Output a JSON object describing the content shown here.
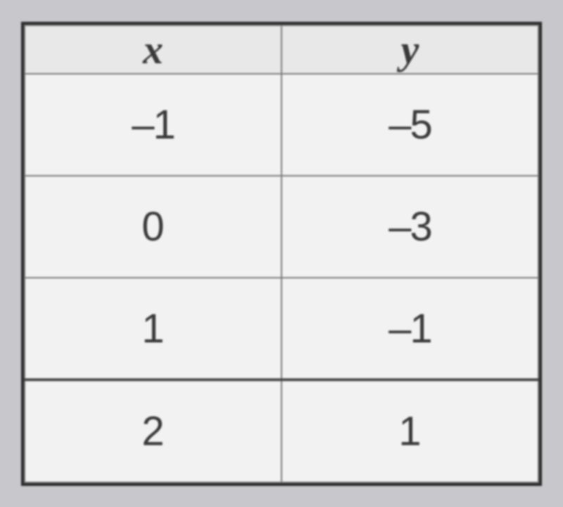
{
  "table": {
    "type": "table",
    "columns": [
      "x",
      "y"
    ],
    "rows": [
      [
        "–1",
        "–5"
      ],
      [
        "0",
        "–3"
      ],
      [
        "1",
        "–1"
      ],
      [
        "2",
        "1"
      ]
    ],
    "header_bg": "#e8e8e8",
    "cell_bg": "#f2f2f2",
    "border_color": "#7a7a7a",
    "outer_border_color": "#2a2a2a",
    "text_color": "#3a3a3a",
    "header_fontsize": 58,
    "cell_fontsize": 58,
    "header_fontstyle": "italic",
    "header_fontweight": "bold",
    "column_widths": [
      "50%",
      "50%"
    ],
    "alignment": "center",
    "heavy_row_divider_before_index": 3
  },
  "background_color": "#c8c8cc"
}
